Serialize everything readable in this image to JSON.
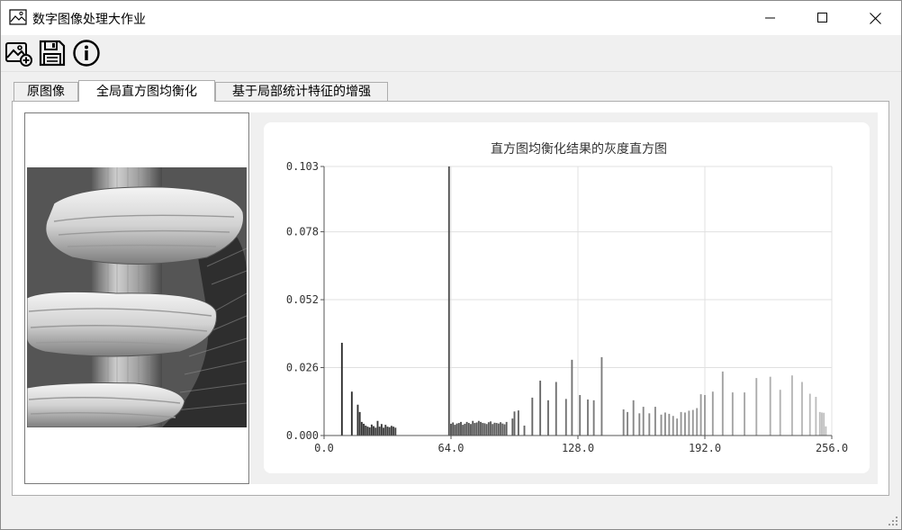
{
  "window": {
    "title": "数字图像处理大作业",
    "minimize_glyph": "—",
    "maximize_glyph": "☐",
    "close_glyph": "✕"
  },
  "toolbar": {
    "open_icon": "image-add-icon",
    "save_icon": "save-icon",
    "info_icon": "info-icon"
  },
  "tabs": [
    {
      "label": "原图像",
      "active": false
    },
    {
      "label": "全局直方图均衡化",
      "active": true
    },
    {
      "label": "基于局部统计特征的增强",
      "active": false
    }
  ],
  "chart_data": {
    "type": "bar",
    "title": "直方图均衡化结果的灰度直方图",
    "xlim": [
      0,
      256
    ],
    "ylim": [
      0,
      0.103
    ],
    "x_ticks": [
      0,
      64,
      128,
      192,
      256
    ],
    "x_tick_labels": [
      "0.0",
      "64.0",
      "128.0",
      "192.0",
      "256.0"
    ],
    "y_ticks": [
      0,
      0.026,
      0.052,
      0.078,
      0.103
    ],
    "y_tick_labels": [
      "0.000",
      "0.026",
      "0.052",
      "0.078",
      "0.103"
    ],
    "grid": true,
    "x": [
      9,
      14,
      17,
      18,
      19,
      20,
      21,
      22,
      23,
      24,
      25,
      26,
      27,
      28,
      29,
      30,
      31,
      32,
      33,
      34,
      35,
      36,
      63,
      64,
      65,
      66,
      67,
      68,
      69,
      70,
      71,
      72,
      73,
      74,
      75,
      76,
      77,
      78,
      79,
      80,
      81,
      82,
      83,
      84,
      85,
      86,
      87,
      88,
      89,
      90,
      91,
      92,
      95,
      96,
      98,
      101,
      105,
      109,
      113,
      117,
      122,
      125,
      129,
      133,
      136,
      140,
      151,
      153,
      156,
      159,
      161,
      164,
      167,
      170,
      172,
      174,
      176,
      178,
      180,
      182,
      184,
      186,
      188,
      190,
      192,
      196,
      201,
      206,
      212,
      218,
      225,
      230,
      236,
      241,
      245,
      248,
      250,
      251,
      252,
      253
    ],
    "values": [
      0.0355,
      0.0168,
      0.0118,
      0.009,
      0.0052,
      0.0045,
      0.0038,
      0.0034,
      0.0031,
      0.0042,
      0.0036,
      0.003,
      0.0056,
      0.0034,
      0.0044,
      0.003,
      0.0041,
      0.0034,
      0.0032,
      0.0037,
      0.0034,
      0.003,
      0.103,
      0.0045,
      0.005,
      0.0041,
      0.0046,
      0.0048,
      0.0052,
      0.0041,
      0.0045,
      0.0052,
      0.0048,
      0.0044,
      0.0056,
      0.0048,
      0.005,
      0.0056,
      0.0052,
      0.0048,
      0.0047,
      0.0044,
      0.0051,
      0.0054,
      0.0044,
      0.0049,
      0.0048,
      0.0046,
      0.0051,
      0.0046,
      0.0043,
      0.0052,
      0.0065,
      0.0092,
      0.0096,
      0.0038,
      0.0145,
      0.021,
      0.0135,
      0.0205,
      0.014,
      0.029,
      0.0155,
      0.0138,
      0.0135,
      0.03,
      0.01,
      0.009,
      0.0135,
      0.0085,
      0.011,
      0.0085,
      0.011,
      0.008,
      0.0088,
      0.0083,
      0.0075,
      0.0065,
      0.009,
      0.0088,
      0.0095,
      0.0098,
      0.0105,
      0.0158,
      0.0155,
      0.0168,
      0.0245,
      0.0165,
      0.0165,
      0.022,
      0.0225,
      0.0175,
      0.023,
      0.0205,
      0.016,
      0.0148,
      0.009,
      0.0088,
      0.0087,
      0.0035
    ]
  }
}
